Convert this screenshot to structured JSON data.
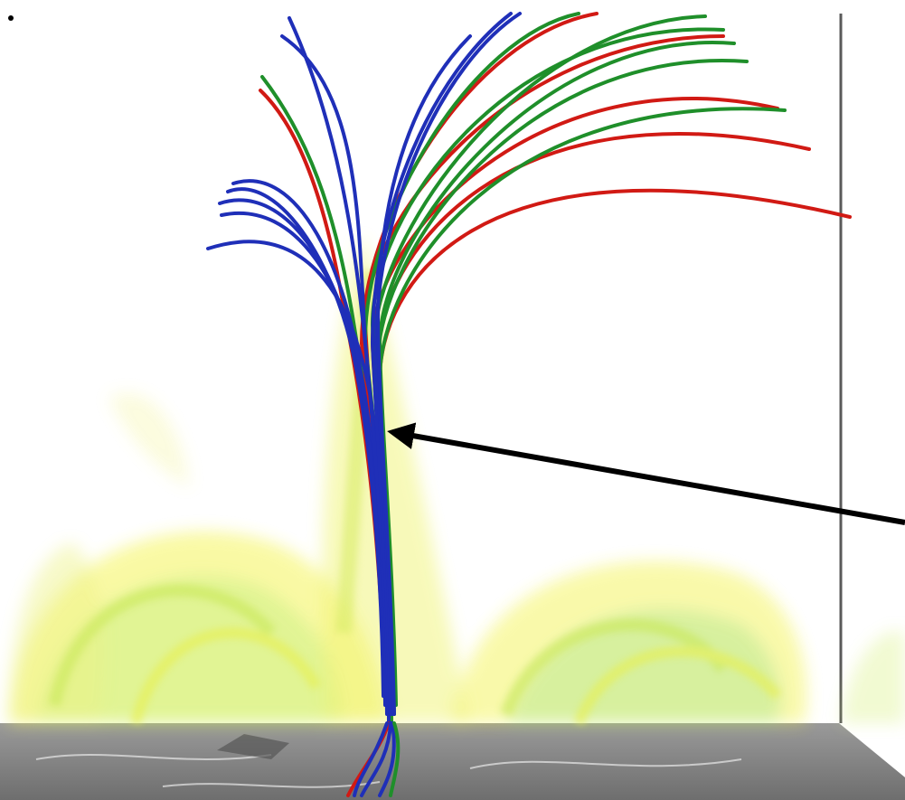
{
  "figure": {
    "colors": {
      "background": "#ffffff",
      "field_red": "#d11a14",
      "field_green": "#1f8f2a",
      "field_blue": "#1f2fb8",
      "volume_yellow": "#f2f23a",
      "volume_green": "#9fe07a",
      "photosphere": "#8a8a8a",
      "arrow": "#000000",
      "box_edge": "#5a5a5a"
    }
  }
}
